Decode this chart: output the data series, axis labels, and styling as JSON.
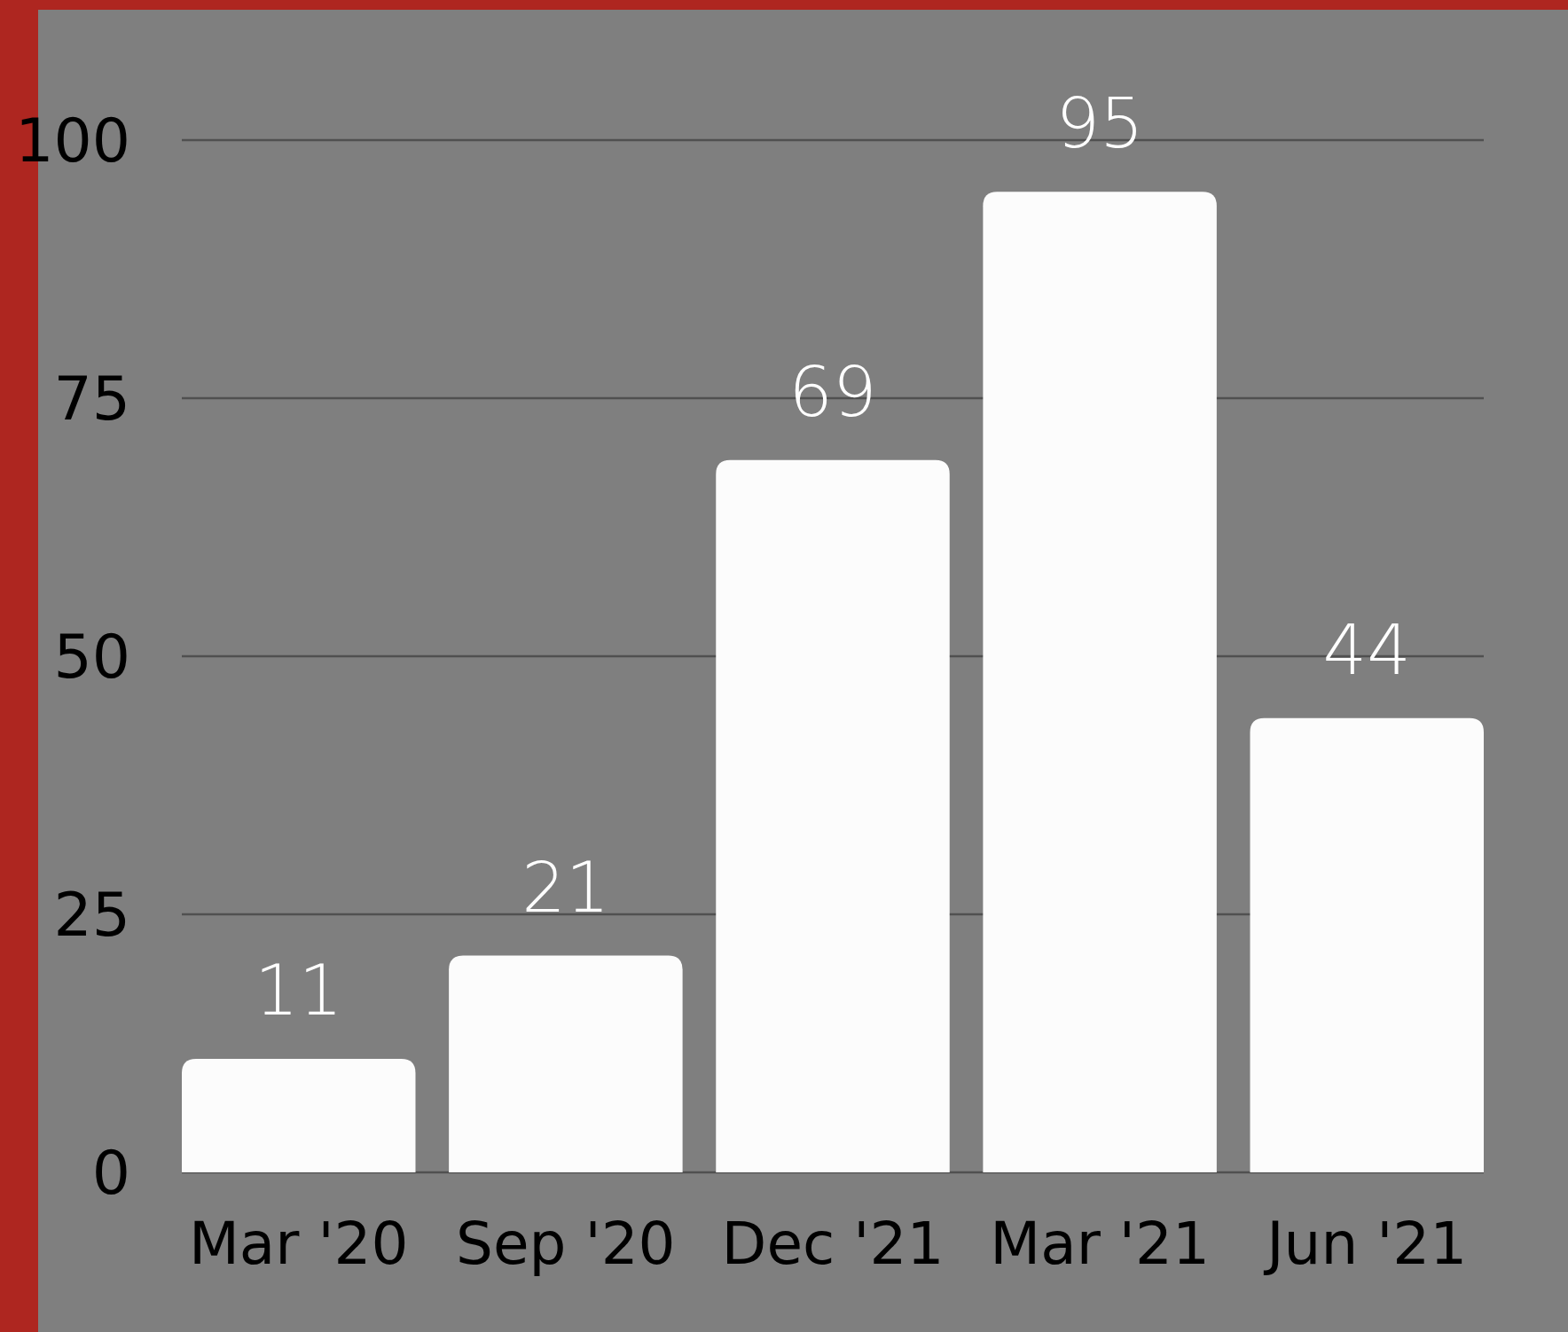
{
  "chart_data": {
    "type": "bar",
    "categories": [
      "Mar '20",
      "Sep '20",
      "Dec '21",
      "Mar '21",
      "Jun '21"
    ],
    "values": [
      11,
      21,
      69,
      95,
      44
    ],
    "color": "#fcfcfc",
    "ylim": [
      0,
      100
    ],
    "yticks": [
      0,
      25,
      50,
      75,
      100
    ],
    "grid": "y",
    "data_labels": true
  }
}
